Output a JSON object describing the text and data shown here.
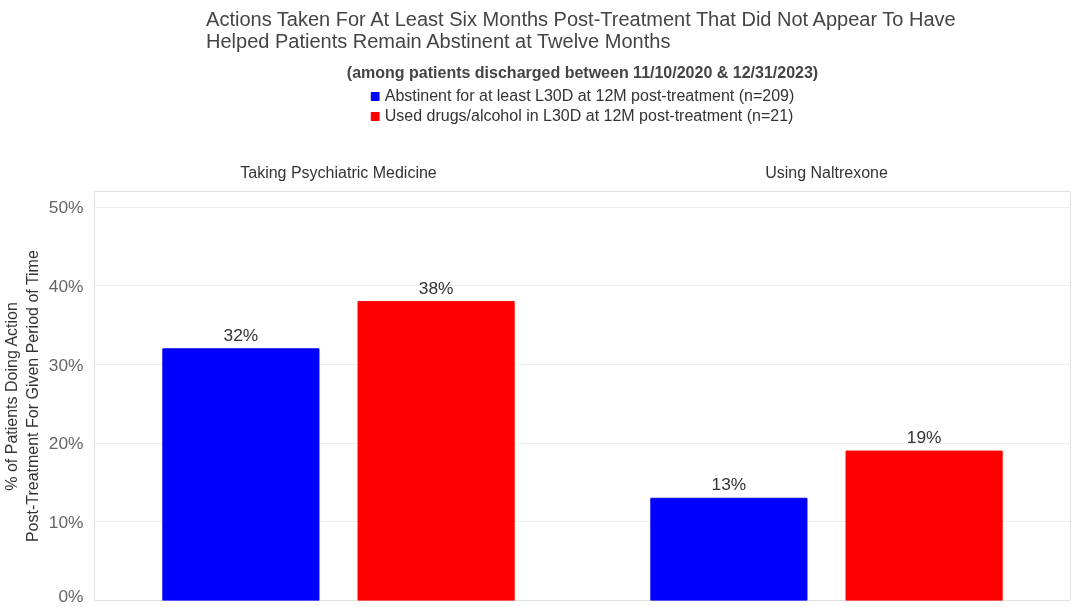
{
  "chart_data": {
    "type": "bar",
    "title": "Actions Taken For At Least Six Months Post-Treatment That Did Not Appear To Have Helped Patients Remain Abstinent at Twelve Months",
    "subtitle": "(among patients discharged between 11/10/2020 & 12/31/2023)",
    "ylabel": "% of Patients Doing Action\nPost-Treatment For Given Period of Time",
    "categories": [
      "Taking Psychiatric Medicine",
      "Using Naltrexone"
    ],
    "series": [
      {
        "name": "Abstinent for at least L30D at 12M post-treatment (n=209)",
        "color": "#0000ff",
        "values": [
          32,
          13
        ],
        "value_labels": [
          "32%",
          "13%"
        ]
      },
      {
        "name": "Used drugs/alcohol in L30D at 12M post-treatment (n=21)",
        "color": "#ff0000",
        "values": [
          38,
          19
        ],
        "value_labels": [
          "38%",
          "19%"
        ]
      }
    ],
    "ylim": [
      0,
      52
    ],
    "yticks": [
      {
        "value": 0,
        "label": "0%"
      },
      {
        "value": 10,
        "label": "10%"
      },
      {
        "value": 20,
        "label": "20%"
      },
      {
        "value": 30,
        "label": "30%"
      },
      {
        "value": 40,
        "label": "40%"
      },
      {
        "value": 50,
        "label": "50%"
      }
    ],
    "grid": "y",
    "legend": "top"
  }
}
